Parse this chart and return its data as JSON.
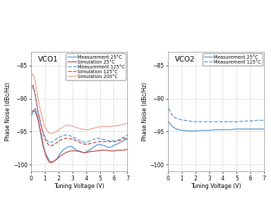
{
  "fig_bg": "#ffffff",
  "axes_bg": "#ffffff",
  "title1": "VCO1",
  "title2": "VCO2",
  "xlabel": "Tuning Voltage (V)",
  "ylabel": "Phase Noise (dBc/Hz)",
  "ylim": [
    -101,
    -83
  ],
  "xlim": [
    0,
    7
  ],
  "yticks": [
    -100,
    -95,
    -90,
    -85
  ],
  "xticks": [
    0,
    1,
    2,
    3,
    4,
    5,
    6,
    7
  ],
  "grid_color": "#d0d0d0",
  "vco1": {
    "meas_25": {
      "x": [
        0.05,
        0.15,
        0.3,
        0.5,
        0.7,
        0.9,
        1.1,
        1.3,
        1.5,
        1.7,
        1.9,
        2.1,
        2.3,
        2.5,
        2.7,
        2.9,
        3.1,
        3.3,
        3.5,
        3.7,
        3.9,
        4.1,
        4.3,
        4.5,
        4.7,
        4.9,
        5.1,
        5.3,
        5.5,
        5.7,
        5.9,
        6.1,
        6.3,
        6.5,
        6.7,
        6.9,
        7.0
      ],
      "y": [
        -92.5,
        -92.0,
        -91.5,
        -93.0,
        -95.5,
        -97.5,
        -98.5,
        -99.3,
        -99.6,
        -99.4,
        -99.0,
        -98.3,
        -97.8,
        -97.5,
        -97.3,
        -97.2,
        -97.5,
        -97.8,
        -97.9,
        -98.1,
        -98.2,
        -97.9,
        -97.7,
        -97.4,
        -97.1,
        -96.9,
        -97.0,
        -97.1,
        -97.3,
        -97.4,
        -97.2,
        -97.0,
        -96.8,
        -96.6,
        -96.4,
        -96.2,
        -96.0
      ],
      "color": "#5b9bd5",
      "linestyle": "-",
      "linewidth": 1.0,
      "label": "Measurement 25°C"
    },
    "sim_25": {
      "x": [
        0.05,
        0.15,
        0.3,
        0.5,
        0.7,
        0.9,
        1.1,
        1.3,
        1.5,
        1.7,
        1.9,
        2.1,
        2.3,
        2.5,
        2.7,
        2.9,
        3.1,
        3.3,
        3.5,
        3.7,
        3.9,
        4.1,
        4.3,
        4.5,
        4.7,
        4.9,
        5.1,
        5.3,
        5.5,
        5.7,
        5.9,
        6.1,
        6.3,
        6.5,
        6.7,
        6.9,
        7.0
      ],
      "y": [
        -92.0,
        -91.8,
        -92.0,
        -93.2,
        -95.0,
        -97.3,
        -98.8,
        -99.6,
        -99.7,
        -99.4,
        -99.1,
        -98.7,
        -98.4,
        -98.2,
        -98.0,
        -97.9,
        -97.9,
        -97.9,
        -98.0,
        -98.1,
        -98.2,
        -98.1,
        -98.0,
        -98.0,
        -97.9,
        -97.9,
        -97.8,
        -97.8,
        -97.8,
        -97.9,
        -97.9,
        -97.9,
        -97.8,
        -97.8,
        -97.8,
        -97.7,
        -97.7
      ],
      "color": "#c0504d",
      "linestyle": "-",
      "linewidth": 1.0,
      "label": "Simulation 25°C"
    },
    "meas_125": {
      "x": [
        0.05,
        0.15,
        0.3,
        0.5,
        0.7,
        0.9,
        1.1,
        1.3,
        1.5,
        1.7,
        1.9,
        2.1,
        2.3,
        2.5,
        2.7,
        2.9,
        3.1,
        3.3,
        3.5,
        3.7,
        3.9,
        4.1,
        4.3,
        4.5,
        4.7,
        4.9,
        5.1,
        5.3,
        5.5,
        5.7,
        5.9,
        6.1,
        6.3,
        6.5,
        6.7,
        6.9,
        7.0
      ],
      "y": [
        -88.5,
        -88.3,
        -89.5,
        -92.0,
        -93.8,
        -95.3,
        -96.2,
        -96.6,
        -96.6,
        -96.3,
        -96.0,
        -95.8,
        -95.6,
        -95.5,
        -95.5,
        -95.7,
        -95.9,
        -96.1,
        -96.3,
        -96.5,
        -96.6,
        -96.5,
        -96.4,
        -96.2,
        -96.1,
        -96.0,
        -96.1,
        -96.2,
        -96.3,
        -96.4,
        -96.4,
        -96.4,
        -96.3,
        -96.1,
        -95.9,
        -95.6,
        -95.5
      ],
      "color": "#5b9bd5",
      "linestyle": "--",
      "linewidth": 1.0,
      "label": "Measurement 125°C"
    },
    "sim_125": {
      "x": [
        0.05,
        0.15,
        0.3,
        0.5,
        0.7,
        0.9,
        1.1,
        1.3,
        1.5,
        1.7,
        1.9,
        2.1,
        2.3,
        2.5,
        2.7,
        2.9,
        3.1,
        3.3,
        3.5,
        3.7,
        3.9,
        4.1,
        4.3,
        4.5,
        4.7,
        4.9,
        5.1,
        5.3,
        5.5,
        5.7,
        5.9,
        6.1,
        6.3,
        6.5,
        6.7,
        6.9,
        7.0
      ],
      "y": [
        -88.2,
        -88.0,
        -89.5,
        -92.0,
        -93.8,
        -95.5,
        -96.5,
        -97.1,
        -97.1,
        -96.9,
        -96.6,
        -96.3,
        -96.1,
        -96.0,
        -96.0,
        -96.1,
        -96.2,
        -96.4,
        -96.6,
        -96.8,
        -96.9,
        -96.9,
        -96.8,
        -96.7,
        -96.6,
        -96.5,
        -96.5,
        -96.5,
        -96.5,
        -96.5,
        -96.5,
        -96.5,
        -96.4,
        -96.3,
        -96.1,
        -96.0,
        -95.9
      ],
      "color": "#c0504d",
      "linestyle": "--",
      "linewidth": 1.0,
      "label": "Simulation 125°C"
    },
    "sim_200": {
      "x": [
        0.05,
        0.15,
        0.3,
        0.5,
        0.7,
        0.9,
        1.1,
        1.3,
        1.5,
        1.7,
        1.9,
        2.1,
        2.3,
        2.5,
        2.7,
        2.9,
        3.1,
        3.3,
        3.5,
        3.7,
        3.9,
        4.1,
        4.3,
        4.5,
        4.7,
        4.9,
        5.1,
        5.3,
        5.5,
        5.7,
        5.9,
        6.1,
        6.3,
        6.5,
        6.7,
        6.9,
        7.0
      ],
      "y": [
        -86.5,
        -86.3,
        -87.5,
        -90.0,
        -92.0,
        -93.7,
        -94.7,
        -95.2,
        -95.3,
        -95.1,
        -94.9,
        -94.6,
        -94.3,
        -94.1,
        -94.0,
        -94.1,
        -94.2,
        -94.4,
        -94.5,
        -94.6,
        -94.7,
        -94.7,
        -94.6,
        -94.5,
        -94.4,
        -94.3,
        -94.2,
        -94.2,
        -94.2,
        -94.2,
        -94.2,
        -94.1,
        -94.1,
        -94.0,
        -93.9,
        -93.8,
        -93.8
      ],
      "color": "#e8a090",
      "linestyle": "-",
      "linewidth": 0.9,
      "alpha": 1.0,
      "label": "Simulation 200°C"
    }
  },
  "vco2": {
    "meas_25": {
      "x": [
        0.05,
        0.3,
        0.6,
        1.0,
        1.5,
        2.0,
        2.5,
        3.0,
        3.5,
        4.0,
        4.5,
        5.0,
        5.5,
        6.0,
        6.5,
        7.0
      ],
      "y": [
        -93.5,
        -94.2,
        -94.6,
        -94.8,
        -94.9,
        -94.9,
        -94.8,
        -94.8,
        -94.7,
        -94.7,
        -94.7,
        -94.6,
        -94.6,
        -94.6,
        -94.6,
        -94.6
      ],
      "color": "#5b9bd5",
      "linestyle": "-",
      "linewidth": 1.0,
      "label": "Measurement 25°C"
    },
    "meas_125": {
      "x": [
        0.05,
        0.3,
        0.6,
        1.0,
        1.5,
        2.0,
        2.5,
        3.0,
        3.5,
        4.0,
        4.5,
        5.0,
        5.5,
        6.0,
        6.5,
        7.0
      ],
      "y": [
        -91.5,
        -92.5,
        -93.0,
        -93.2,
        -93.4,
        -93.5,
        -93.5,
        -93.5,
        -93.5,
        -93.5,
        -93.5,
        -93.5,
        -93.4,
        -93.4,
        -93.3,
        -93.3
      ],
      "color": "#5b9bd5",
      "linestyle": "--",
      "linewidth": 1.0,
      "label": "Measurement 125°C"
    }
  },
  "legend_fontsize": 4.8,
  "tick_fontsize": 5.5,
  "label_fontsize": 5.8,
  "title_fontsize": 7.5
}
